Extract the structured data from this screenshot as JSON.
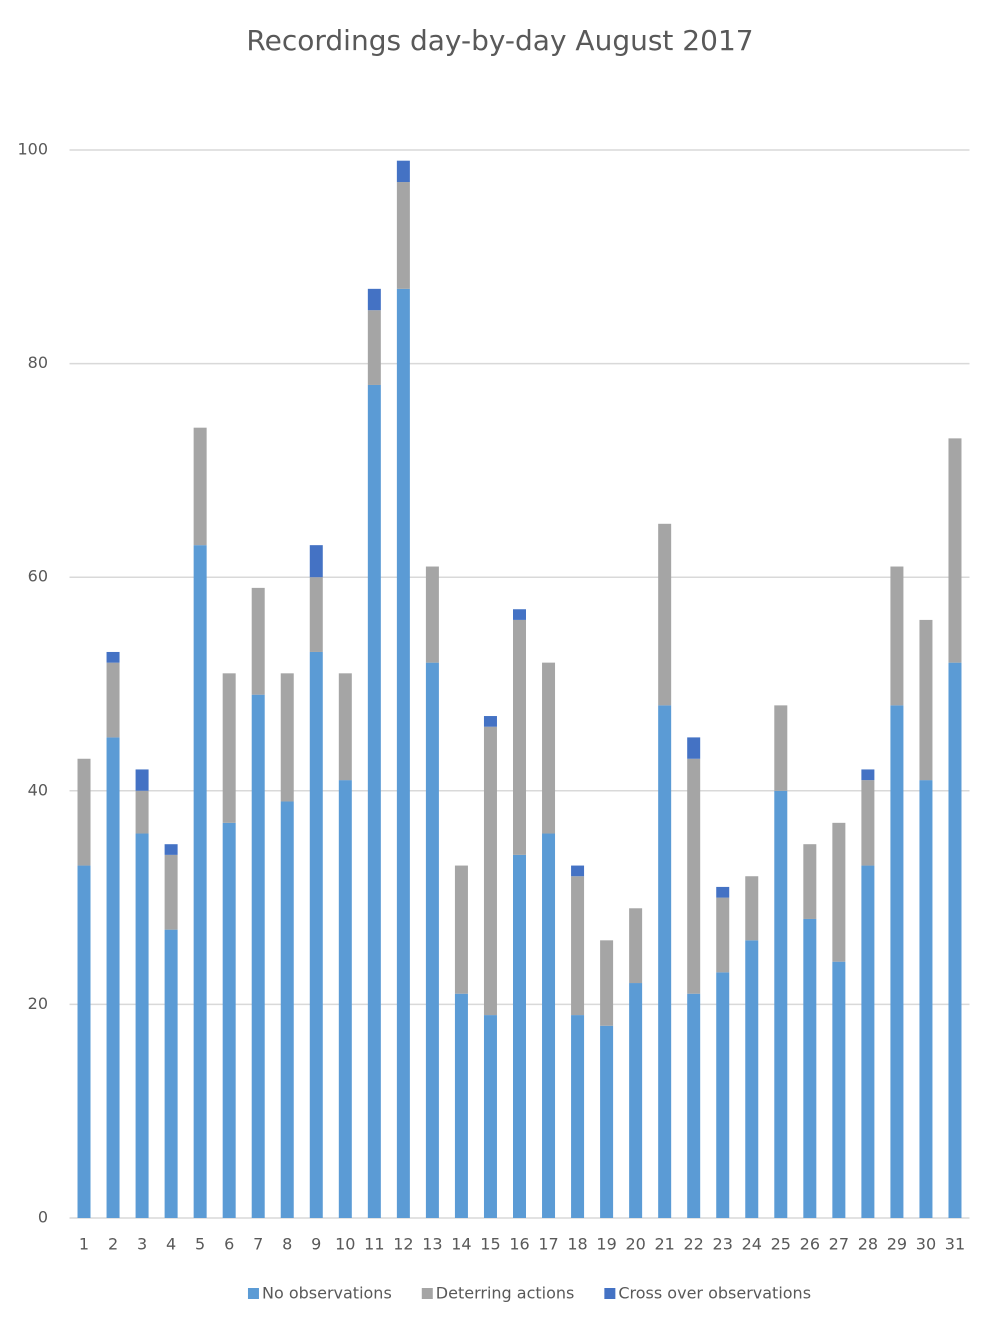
{
  "chart_data": {
    "type": "stacked_bar",
    "title": "Recordings day-by-day August 2017",
    "categories": [
      "1",
      "2",
      "3",
      "4",
      "5",
      "6",
      "7",
      "8",
      "9",
      "10",
      "11",
      "12",
      "13",
      "14",
      "15",
      "16",
      "17",
      "18",
      "19",
      "20",
      "21",
      "22",
      "23",
      "24",
      "25",
      "26",
      "27",
      "28",
      "29",
      "30",
      "31"
    ],
    "series": [
      {
        "name": "No observations",
        "color": "#5b9bd5",
        "values": [
          33,
          45,
          36,
          27,
          63,
          37,
          49,
          39,
          53,
          41,
          78,
          87,
          52,
          21,
          19,
          34,
          36,
          19,
          18,
          22,
          48,
          21,
          23,
          26,
          40,
          28,
          24,
          33,
          48,
          41,
          52
        ]
      },
      {
        "name": "Deterring actions",
        "color": "#a5a5a5",
        "values": [
          10,
          7,
          4,
          7,
          11,
          14,
          10,
          12,
          7,
          10,
          7,
          10,
          9,
          12,
          27,
          22,
          16,
          13,
          8,
          7,
          17,
          22,
          7,
          6,
          8,
          7,
          13,
          8,
          13,
          15,
          21
        ]
      },
      {
        "name": "Cross over observations",
        "color": "#4472c4",
        "values": [
          0,
          1,
          2,
          1,
          0,
          0,
          0,
          0,
          3,
          0,
          2,
          2,
          0,
          0,
          1,
          1,
          0,
          1,
          0,
          0,
          0,
          2,
          1,
          0,
          0,
          0,
          0,
          1,
          0,
          0,
          0
        ]
      }
    ],
    "ylim": [
      0,
      100
    ],
    "yticks": [
      0,
      20,
      40,
      60,
      80,
      100
    ],
    "grid": true,
    "legend": "bottom"
  }
}
